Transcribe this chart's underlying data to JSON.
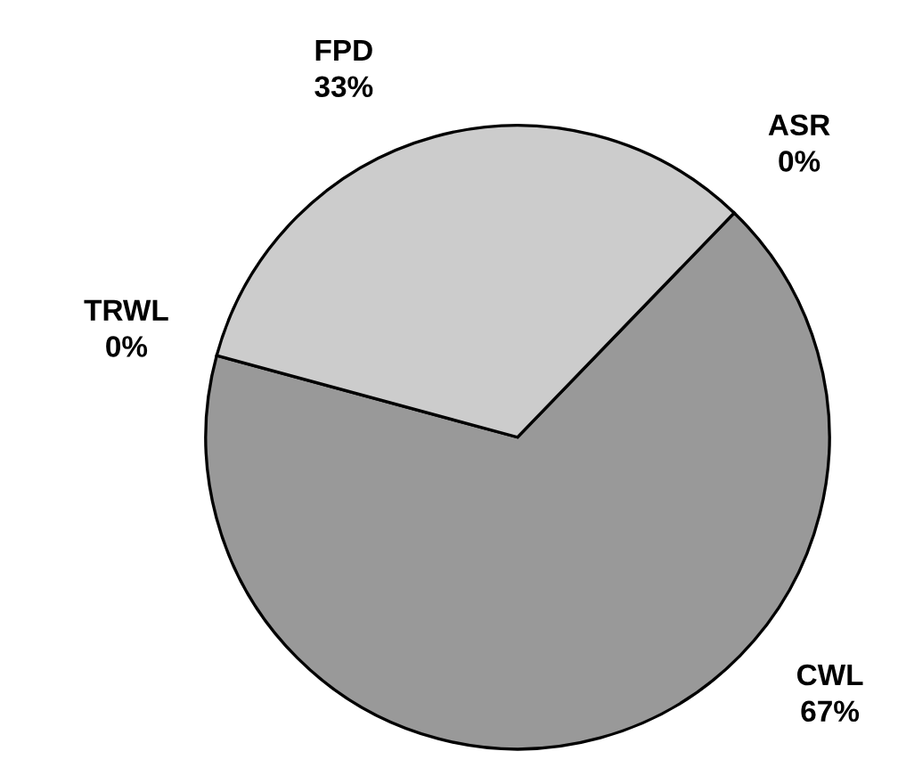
{
  "chart_data": {
    "type": "pie",
    "categories": [
      "ASR",
      "CWL",
      "TRWL",
      "FPD"
    ],
    "values": [
      0,
      67,
      0,
      33
    ],
    "value_labels": [
      "0%",
      "67%",
      "0%",
      "33%"
    ],
    "colors": [
      "#666666",
      "#999999",
      "#333333",
      "#cccccc"
    ]
  }
}
